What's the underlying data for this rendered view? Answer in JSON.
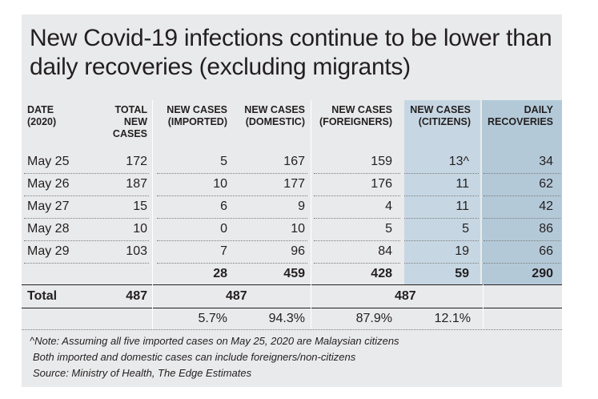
{
  "title": "New Covid-19 infections continue to be lower than daily recoveries (excluding migrants)",
  "chart_data": {
    "type": "table",
    "title": "New Covid-19 infections continue to be lower than daily recoveries (excluding migrants)",
    "columns": [
      "DATE (2020)",
      "TOTAL NEW CASES",
      "NEW CASES (IMPORTED)",
      "NEW CASES (DOMESTIC)",
      "NEW CASES (FOREIGNERS)",
      "NEW CASES (CITIZENS)",
      "DAILY RECOVERIES"
    ],
    "rows": [
      {
        "date": "May 25",
        "total": "172",
        "imported": "5",
        "domestic": "167",
        "foreigners": "159",
        "citizens": "13^",
        "recoveries": "34"
      },
      {
        "date": "May 26",
        "total": "187",
        "imported": "10",
        "domestic": "177",
        "foreigners": "176",
        "citizens": "11",
        "recoveries": "62"
      },
      {
        "date": "May 27",
        "total": "15",
        "imported": "6",
        "domestic": "9",
        "foreigners": "4",
        "citizens": "11",
        "recoveries": "42"
      },
      {
        "date": "May 28",
        "total": "10",
        "imported": "0",
        "domestic": "10",
        "foreigners": "5",
        "citizens": "5",
        "recoveries": "86"
      },
      {
        "date": "May 29",
        "total": "103",
        "imported": "7",
        "domestic": "96",
        "foreigners": "84",
        "citizens": "19",
        "recoveries": "66"
      }
    ],
    "subtotals": {
      "imported": "28",
      "domestic": "459",
      "foreigners": "428",
      "citizens": "59",
      "recoveries": "290"
    },
    "total_row": {
      "label": "Total",
      "total": "487",
      "imported_domestic": "487",
      "foreigners_citizens": "487"
    },
    "percent_row": {
      "imported": "5.7%",
      "domestic": "94.3%",
      "foreigners": "87.9%",
      "citizens": "12.1%"
    }
  },
  "headers": {
    "date": [
      "DATE",
      "(2020)"
    ],
    "total": [
      "TOTAL",
      "NEW",
      "CASES"
    ],
    "imported": [
      "NEW CASES",
      "(IMPORTED)"
    ],
    "domestic": [
      "NEW CASES",
      "(DOMESTIC)"
    ],
    "foreigners": [
      "NEW CASES",
      "(FOREIGNERS)"
    ],
    "citizens": [
      "NEW CASES",
      "(CITIZENS)"
    ],
    "recoveries": [
      "DAILY",
      "RECOVERIES"
    ]
  },
  "notes": [
    "^Note: Assuming all five imported cases on May 25, 2020 are Malaysian citizens",
    "Both imported and domestic cases can include foreigners/non-citizens",
    "Source: Ministry of Health, The Edge Estimates"
  ],
  "colors": {
    "background": "#e9eaeb",
    "citizens_col": "#c6d7e3",
    "recoveries_col": "#b4c9d8",
    "text": "#231f20"
  }
}
